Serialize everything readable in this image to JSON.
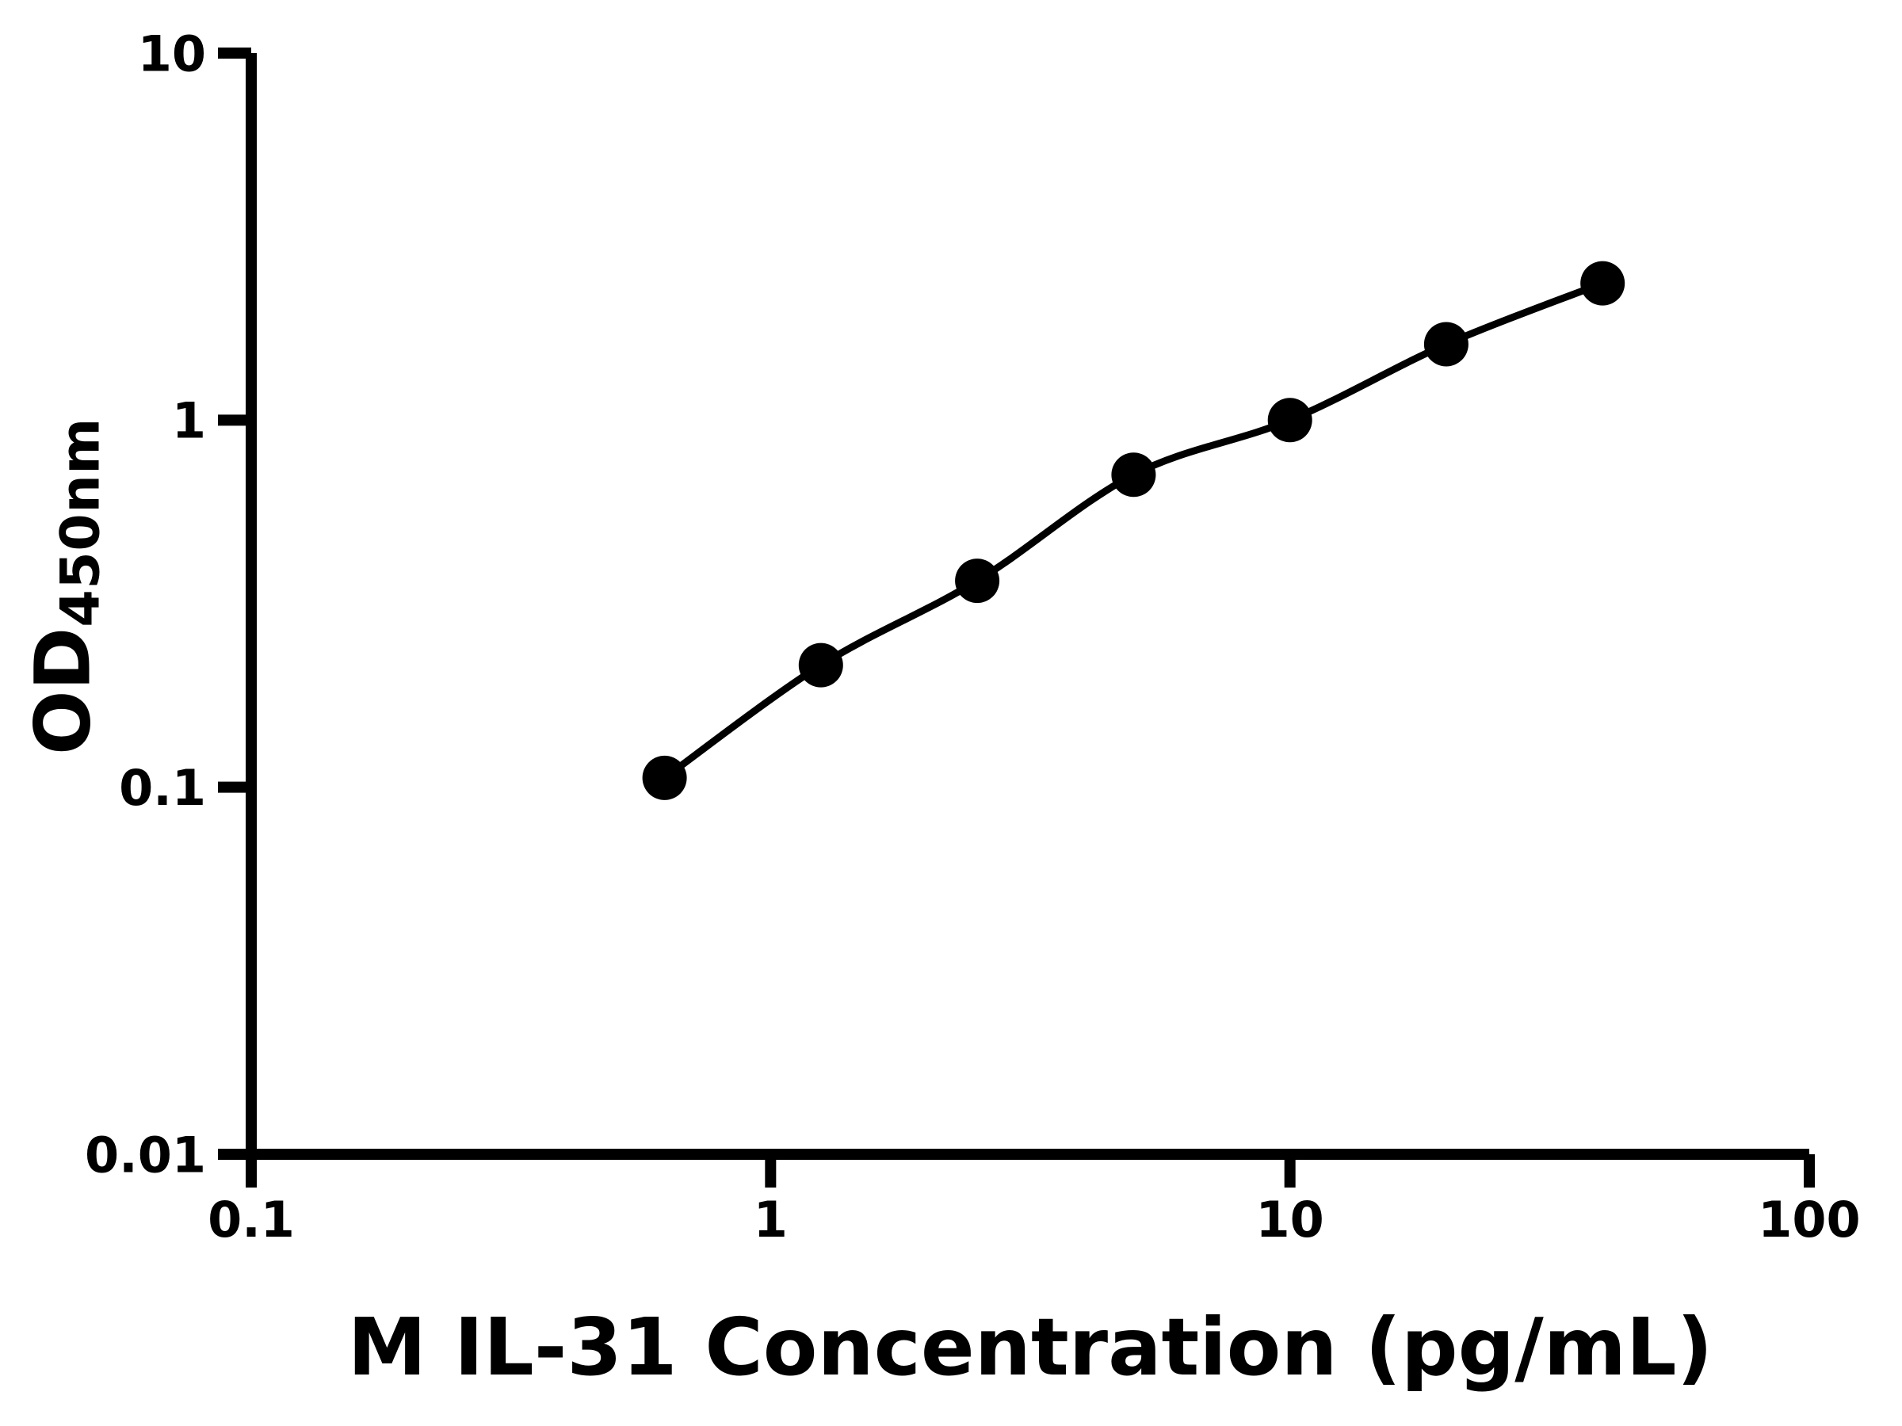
{
  "figure": {
    "background": "#ffffff",
    "axis_color": "#000000"
  },
  "chart_data": {
    "type": "line",
    "title": "",
    "xlabel": "M IL-31 Concentration (pg/mL)",
    "ylabel": {
      "text": "OD450nm",
      "main": "OD",
      "sub": "450nm"
    },
    "x_scale": "log",
    "y_scale": "log",
    "xlim": [
      0.1,
      100
    ],
    "ylim": [
      0.01,
      10
    ],
    "grid": false,
    "legend": "none",
    "x_ticks": [
      {
        "value": 0.1,
        "label": "0.1"
      },
      {
        "value": 1,
        "label": "1"
      },
      {
        "value": 10,
        "label": "10"
      },
      {
        "value": 100,
        "label": "100"
      }
    ],
    "y_ticks": [
      {
        "value": 0.01,
        "label": "0.01"
      },
      {
        "value": 0.1,
        "label": "0.1"
      },
      {
        "value": 1,
        "label": "1"
      },
      {
        "value": 10,
        "label": "10"
      }
    ],
    "series": [
      {
        "marker": "circle",
        "marker_color": "#000000",
        "line_color": "#000000",
        "points": [
          {
            "x": 0.625,
            "y": 0.106
          },
          {
            "x": 1.25,
            "y": 0.215
          },
          {
            "x": 2.5,
            "y": 0.365
          },
          {
            "x": 5,
            "y": 0.71
          },
          {
            "x": 10,
            "y": 1.0
          },
          {
            "x": 20,
            "y": 1.61
          },
          {
            "x": 40,
            "y": 2.36
          }
        ]
      }
    ]
  }
}
